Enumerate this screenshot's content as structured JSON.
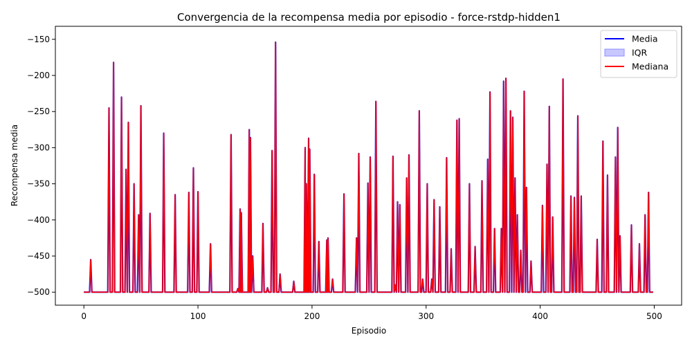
{
  "chart_data": {
    "type": "line",
    "title": "Convergencia de la recompensa media por episodio - force-rstdp-hidden1",
    "xlabel": "Episodio",
    "ylabel": "Recompensa media",
    "xlim": [
      -25,
      524
    ],
    "ylim": [
      -518,
      -132
    ],
    "x_ticks": [
      0,
      100,
      200,
      300,
      400,
      500
    ],
    "y_ticks": [
      -500,
      -450,
      -400,
      -350,
      -300,
      -250,
      -200,
      -150
    ],
    "grid": false,
    "legend_position": "top-right",
    "colors": {
      "media": "#0000ff",
      "iqr": "#c8c8ff",
      "mediana": "#ff0000"
    },
    "legend": [
      {
        "label": "Media",
        "kind": "line",
        "color": "#0000ff"
      },
      {
        "label": "IQR",
        "kind": "patch",
        "color": "#c8c8ff"
      },
      {
        "label": "Mediana",
        "kind": "line",
        "color": "#ff0000"
      }
    ],
    "baseline": -500,
    "episodes": [
      0,
      499
    ],
    "peaks": [
      [
        6,
        -455
      ],
      [
        22,
        -245
      ],
      [
        26,
        -182
      ],
      [
        33,
        -230
      ],
      [
        37,
        -330
      ],
      [
        39,
        -265
      ],
      [
        44,
        -350
      ],
      [
        48,
        -393
      ],
      [
        50,
        -242
      ],
      [
        58,
        -391
      ],
      [
        70,
        -280
      ],
      [
        80,
        -365
      ],
      [
        92,
        -362
      ],
      [
        96,
        -328
      ],
      [
        100,
        -361
      ],
      [
        111,
        -433
      ],
      [
        129,
        -282
      ],
      [
        135,
        -495
      ],
      [
        137,
        -385
      ],
      [
        138,
        -390
      ],
      [
        145,
        -275
      ],
      [
        146,
        -286
      ],
      [
        148,
        -450
      ],
      [
        157,
        -405
      ],
      [
        161,
        -494
      ],
      [
        165,
        -304
      ],
      [
        168,
        -154
      ],
      [
        172,
        -475
      ],
      [
        184,
        -485
      ],
      [
        194,
        -300
      ],
      [
        195,
        -350
      ],
      [
        197,
        -287
      ],
      [
        198,
        -302
      ],
      [
        202,
        -337
      ],
      [
        206,
        -430
      ],
      [
        213,
        -428
      ],
      [
        214,
        -425
      ],
      [
        218,
        -482
      ],
      [
        228,
        -364
      ],
      [
        239,
        -425
      ],
      [
        241,
        -308
      ],
      [
        249,
        -349
      ],
      [
        251,
        -313
      ],
      [
        256,
        -236
      ],
      [
        271,
        -312
      ],
      [
        273,
        -490
      ],
      [
        275,
        -375
      ],
      [
        277,
        -379
      ],
      [
        283,
        -342
      ],
      [
        285,
        -310
      ],
      [
        294,
        -249
      ],
      [
        297,
        -482
      ],
      [
        301,
        -350
      ],
      [
        305,
        -482
      ],
      [
        307,
        -372
      ],
      [
        312,
        -382
      ],
      [
        318,
        -314
      ],
      [
        322,
        -440
      ],
      [
        327,
        -262
      ],
      [
        329,
        -260
      ],
      [
        338,
        -350
      ],
      [
        343,
        -437
      ],
      [
        349,
        -346
      ],
      [
        354,
        -316
      ],
      [
        356,
        -223
      ],
      [
        360,
        -412
      ],
      [
        366,
        -412
      ],
      [
        368,
        -208
      ],
      [
        370,
        -204
      ],
      [
        374,
        -249
      ],
      [
        376,
        -258
      ],
      [
        378,
        -342
      ],
      [
        380,
        -393
      ],
      [
        383,
        -442
      ],
      [
        386,
        -222
      ],
      [
        388,
        -355
      ],
      [
        392,
        -457
      ],
      [
        402,
        -380
      ],
      [
        406,
        -323
      ],
      [
        408,
        -243
      ],
      [
        411,
        -396
      ],
      [
        420,
        -205
      ],
      [
        427,
        -367
      ],
      [
        430,
        -369
      ],
      [
        433,
        -256
      ],
      [
        436,
        -367
      ],
      [
        450,
        -427
      ],
      [
        455,
        -291
      ],
      [
        459,
        -338
      ],
      [
        466,
        -313
      ],
      [
        468,
        -272
      ],
      [
        470,
        -422
      ],
      [
        480,
        -407
      ],
      [
        487,
        -433
      ],
      [
        492,
        -393
      ],
      [
        495,
        -362
      ]
    ]
  }
}
